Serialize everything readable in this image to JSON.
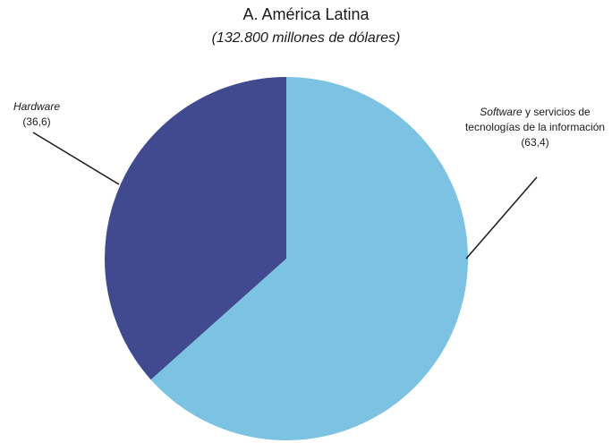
{
  "chart_data": {
    "type": "pie",
    "title": "A. América Latina",
    "subtitle": "(132.800 millones de dólares)",
    "slices": [
      {
        "label_italic": "Hardware",
        "label_rest": "",
        "value": 36.6,
        "value_label": "(36,6)",
        "color": "#414a8f"
      },
      {
        "label_italic": "Software",
        "label_rest": " y servicios de tecnologías de la información",
        "value": 63.4,
        "value_label": "(63,4)",
        "color": "#7cc2e2"
      }
    ]
  }
}
